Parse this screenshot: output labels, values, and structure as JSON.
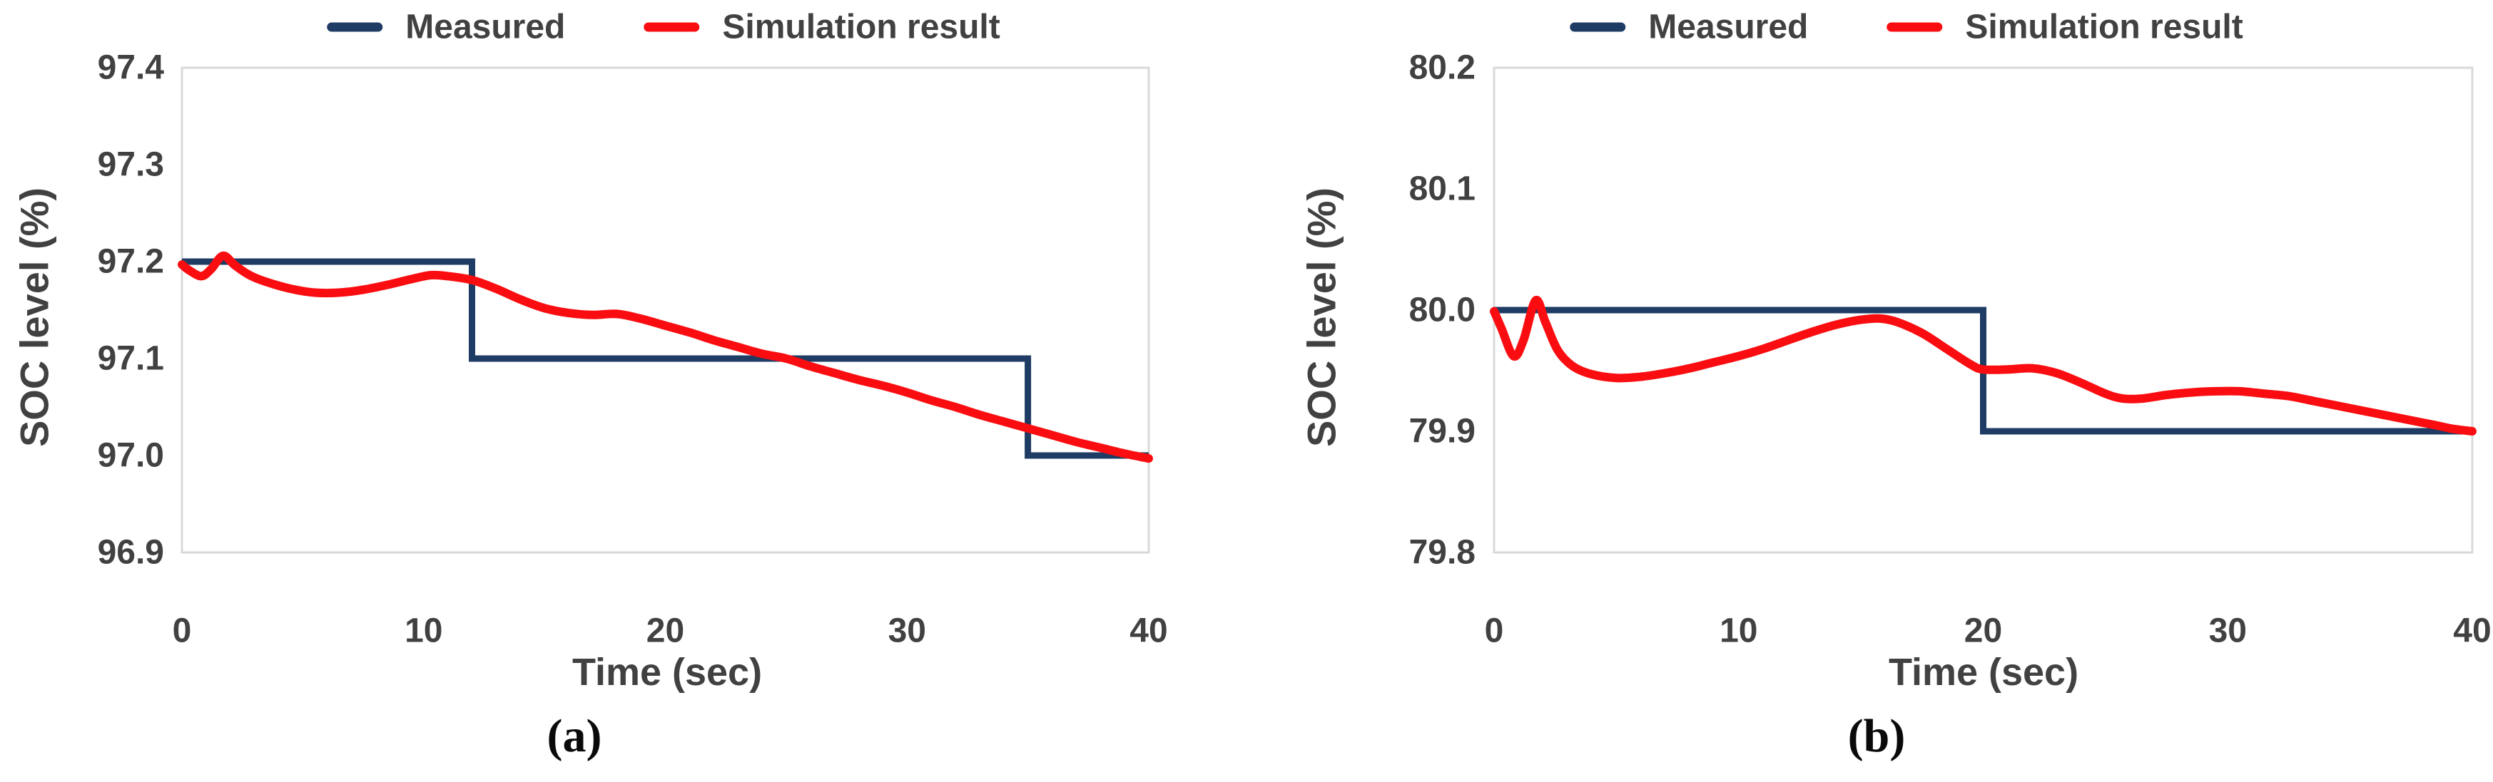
{
  "text_color": "#414141",
  "plot_border_color": "#d9d9d9",
  "chart_data": [
    {
      "type": "line",
      "caption": "(a)",
      "xlabel": "Time (sec)",
      "ylabel": "SOC level (%)",
      "xlim": [
        0,
        40
      ],
      "ylim": [
        96.9,
        97.4
      ],
      "x_ticks": [
        "0",
        "10",
        "20",
        "30",
        "40"
      ],
      "y_ticks": [
        "97.4",
        "97.3",
        "97.2",
        "97.1",
        "97.0",
        "96.9"
      ],
      "grid": false,
      "legend_position": "top",
      "series": [
        {
          "name": "Measured",
          "color": "#1f3c64",
          "style": "step",
          "points": [
            [
              0,
              97.2
            ],
            [
              12,
              97.2
            ],
            [
              12,
              97.1
            ],
            [
              35,
              97.1
            ],
            [
              35,
              97.0
            ],
            [
              40,
              97.0
            ]
          ]
        },
        {
          "name": "Simulation result",
          "color": "#fa0d10",
          "style": "smooth",
          "points": [
            [
              0,
              97.197
            ],
            [
              0.3,
              97.191
            ],
            [
              0.8,
              97.185
            ],
            [
              1.2,
              97.192
            ],
            [
              1.7,
              97.206
            ],
            [
              2.2,
              97.196
            ],
            [
              2.8,
              97.186
            ],
            [
              3.5,
              97.179
            ],
            [
              4.5,
              97.172
            ],
            [
              5.5,
              97.168
            ],
            [
              6.5,
              97.168
            ],
            [
              7.5,
              97.171
            ],
            [
              8.5,
              97.176
            ],
            [
              9.5,
              97.182
            ],
            [
              10.3,
              97.186
            ],
            [
              11,
              97.185
            ],
            [
              12,
              97.181
            ],
            [
              13,
              97.172
            ],
            [
              14,
              97.161
            ],
            [
              15,
              97.152
            ],
            [
              16,
              97.147
            ],
            [
              17,
              97.145
            ],
            [
              18,
              97.146
            ],
            [
              19,
              97.141
            ],
            [
              20,
              97.134
            ],
            [
              21,
              97.127
            ],
            [
              22,
              97.119
            ],
            [
              23,
              97.112
            ],
            [
              24,
              97.105
            ],
            [
              25,
              97.1
            ],
            [
              26,
              97.092
            ],
            [
              27,
              97.085
            ],
            [
              28,
              97.078
            ],
            [
              29,
              97.072
            ],
            [
              30,
              97.065
            ],
            [
              31,
              97.057
            ],
            [
              32,
              97.05
            ],
            [
              33,
              97.042
            ],
            [
              34,
              97.035
            ],
            [
              35,
              97.028
            ],
            [
              36,
              97.021
            ],
            [
              37,
              97.014
            ],
            [
              38,
              97.008
            ],
            [
              39,
              97.002
            ],
            [
              40,
              96.997
            ]
          ]
        }
      ]
    },
    {
      "type": "line",
      "caption": "(b)",
      "xlabel": "Time (sec)",
      "ylabel": "SOC level (%)",
      "xlim": [
        0,
        40
      ],
      "ylim": [
        79.8,
        80.2
      ],
      "x_ticks": [
        "0",
        "10",
        "20",
        "30",
        "40"
      ],
      "y_ticks": [
        "80.2",
        "80.1",
        "80.0",
        "79.9",
        "79.8"
      ],
      "grid": false,
      "legend_position": "top",
      "series": [
        {
          "name": "Measured",
          "color": "#1f3c64",
          "style": "step",
          "points": [
            [
              0,
              80.0
            ],
            [
              20,
              80.0
            ],
            [
              20,
              79.9
            ],
            [
              40,
              79.9
            ]
          ]
        },
        {
          "name": "Simulation result",
          "color": "#fa0d10",
          "style": "smooth",
          "points": [
            [
              0,
              79.999
            ],
            [
              0.3,
              79.985
            ],
            [
              0.8,
              79.962
            ],
            [
              1.2,
              79.975
            ],
            [
              1.7,
              80.008
            ],
            [
              2.1,
              79.99
            ],
            [
              2.6,
              79.967
            ],
            [
              3.2,
              79.954
            ],
            [
              4,
              79.947
            ],
            [
              5,
              79.944
            ],
            [
              6,
              79.945
            ],
            [
              7,
              79.948
            ],
            [
              8,
              79.952
            ],
            [
              9,
              79.957
            ],
            [
              10,
              79.962
            ],
            [
              11,
              79.968
            ],
            [
              12,
              79.975
            ],
            [
              13,
              79.982
            ],
            [
              14,
              79.988
            ],
            [
              15,
              79.992
            ],
            [
              15.8,
              79.993
            ],
            [
              16.5,
              79.99
            ],
            [
              17.5,
              79.981
            ],
            [
              18.5,
              79.968
            ],
            [
              19.5,
              79.955
            ],
            [
              20,
              79.951
            ],
            [
              21,
              79.951
            ],
            [
              22,
              79.952
            ],
            [
              23,
              79.948
            ],
            [
              24,
              79.94
            ],
            [
              25,
              79.931
            ],
            [
              25.7,
              79.927
            ],
            [
              26.5,
              79.927
            ],
            [
              27.5,
              79.93
            ],
            [
              28.5,
              79.932
            ],
            [
              29.5,
              79.933
            ],
            [
              30.5,
              79.933
            ],
            [
              31.5,
              79.931
            ],
            [
              32.5,
              79.929
            ],
            [
              33.5,
              79.925
            ],
            [
              34.5,
              79.921
            ],
            [
              35.5,
              79.917
            ],
            [
              36.5,
              79.913
            ],
            [
              37.5,
              79.909
            ],
            [
              38.5,
              79.905
            ],
            [
              39.2,
              79.902
            ],
            [
              40,
              79.9
            ]
          ]
        }
      ]
    }
  ]
}
